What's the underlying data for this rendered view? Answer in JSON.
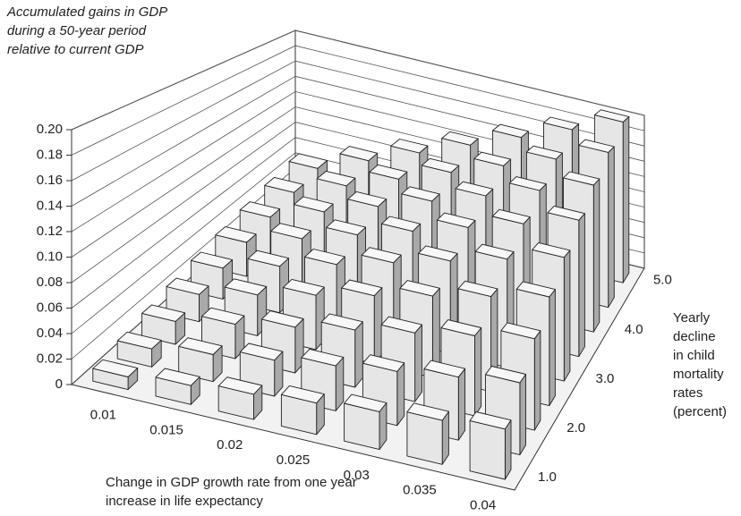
{
  "chart_data": {
    "type": "bar3d",
    "ylabel": [
      "Accumulated gains in GDP",
      "during a 50-year period",
      "relative to current GDP"
    ],
    "xlabel": [
      "Change in GDP growth rate from one year",
      "increase in life expectancy"
    ],
    "zlabel": [
      "Yearly",
      "decline",
      "in child",
      "mortality",
      "rates",
      "(percent)"
    ],
    "categories": [
      "0.01",
      "0.015",
      "0.02",
      "0.025",
      "0.03",
      "0.035",
      "0.04"
    ],
    "z_categories": [
      "1.0",
      null,
      "2.0",
      null,
      "3.0",
      null,
      "4.0",
      null,
      "5.0"
    ],
    "values": [
      [
        0.01,
        0.015,
        0.02,
        0.025,
        0.03,
        0.035,
        0.04
      ],
      [
        0.015,
        0.0225,
        0.03,
        0.0375,
        0.045,
        0.0525,
        0.06
      ],
      [
        0.02,
        0.03,
        0.04,
        0.05,
        0.06,
        0.07,
        0.08
      ],
      [
        0.025,
        0.0375,
        0.05,
        0.0625,
        0.075,
        0.0875,
        0.1
      ],
      [
        0.03,
        0.045,
        0.06,
        0.075,
        0.09,
        0.105,
        0.12
      ],
      [
        0.035,
        0.0525,
        0.07,
        0.0875,
        0.105,
        0.1225,
        0.14
      ],
      [
        0.04,
        0.06,
        0.08,
        0.1,
        0.12,
        0.14,
        0.16
      ],
      [
        0.045,
        0.0675,
        0.09,
        0.1125,
        0.135,
        0.1575,
        0.18
      ],
      [
        0.05,
        0.075,
        0.1,
        0.125,
        0.15,
        0.175,
        0.2
      ]
    ],
    "ylim": [
      0,
      0.2
    ],
    "yticks": [
      0,
      0.02,
      0.04,
      0.06,
      0.08,
      {
        "value": 0.1,
        "label": "0.10"
      },
      0.12,
      0.14,
      0.16,
      0.18,
      {
        "value": 0.2,
        "label": "0.20"
      }
    ],
    "grid": true,
    "colors": {
      "front": "#e6e6e6",
      "side": "#a9a9a9",
      "top": "#f7f7f7"
    }
  }
}
